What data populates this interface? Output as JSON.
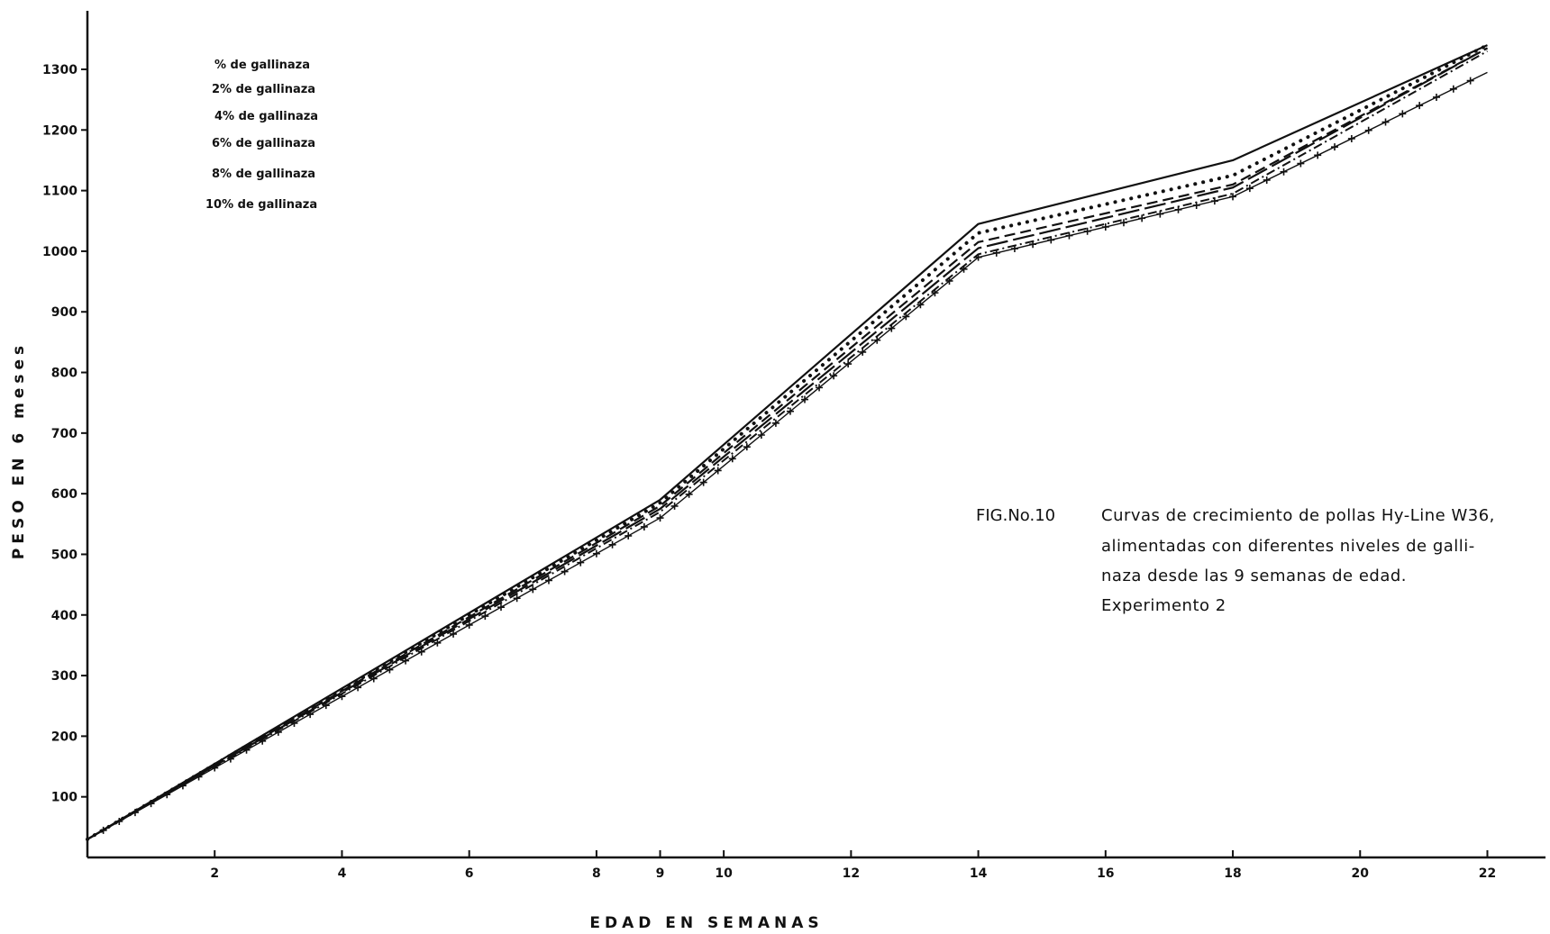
{
  "chart_data": {
    "type": "line",
    "xlabel": "EDAD   EN   SEMANAS",
    "ylabel": "PESO  EN  6 meses",
    "xlim": [
      0,
      23
    ],
    "ylim": [
      0,
      1380
    ],
    "x_ticks": [
      2,
      4,
      6,
      8,
      9,
      10,
      12,
      14,
      16,
      18,
      20,
      22
    ],
    "y_ticks": [
      100,
      200,
      300,
      400,
      500,
      600,
      700,
      800,
      900,
      1000,
      1100,
      1200,
      1300
    ],
    "x_tick_labels": [
      "2",
      "4",
      "6",
      "8",
      "9",
      "10",
      "12",
      "14",
      "16",
      "18",
      "20",
      "22"
    ],
    "y_tick_labels": [
      "100",
      "200",
      "300",
      "400",
      "500",
      "600",
      "700",
      "800",
      "900",
      "1000",
      "1100",
      "1200",
      "1300"
    ],
    "grid": false,
    "legend_position": "top-left",
    "series": [
      {
        "name": "% de gallinaza",
        "style": "solid",
        "x": [
          0,
          9,
          14,
          18,
          22
        ],
        "values": [
          30,
          590,
          1045,
          1150,
          1340
        ]
      },
      {
        "name": "2% de gallinaza",
        "style": "dotted",
        "x": [
          0,
          9,
          14,
          18,
          22
        ],
        "values": [
          30,
          585,
          1030,
          1125,
          1340
        ]
      },
      {
        "name": "4% de gallinaza",
        "style": "dashed",
        "x": [
          0,
          9,
          14,
          18,
          22
        ],
        "values": [
          30,
          580,
          1015,
          1110,
          1335
        ]
      },
      {
        "name": "6% de gallinaza",
        "style": "longdash",
        "x": [
          0,
          9,
          14,
          18,
          22
        ],
        "values": [
          30,
          575,
          1005,
          1105,
          1335
        ]
      },
      {
        "name": "8% de gallinaza",
        "style": "dashdot",
        "x": [
          0,
          9,
          14,
          18,
          22
        ],
        "values": [
          30,
          570,
          995,
          1095,
          1330
        ]
      },
      {
        "name": "10% de gallinaza",
        "style": "cross",
        "x": [
          0,
          9,
          14,
          18,
          22
        ],
        "values": [
          30,
          560,
          990,
          1090,
          1295
        ]
      }
    ]
  },
  "figure": {
    "label": "FIG.No.10",
    "caption_lines": [
      "Curvas de crecimiento de pollas Hy-Line W36,",
      "alimentadas con diferentes niveles de galli-",
      "naza desde las 9 semanas de edad.",
      "Experimento 2"
    ]
  },
  "colors": {
    "ink": "#111111",
    "paper": "#ffffff"
  }
}
